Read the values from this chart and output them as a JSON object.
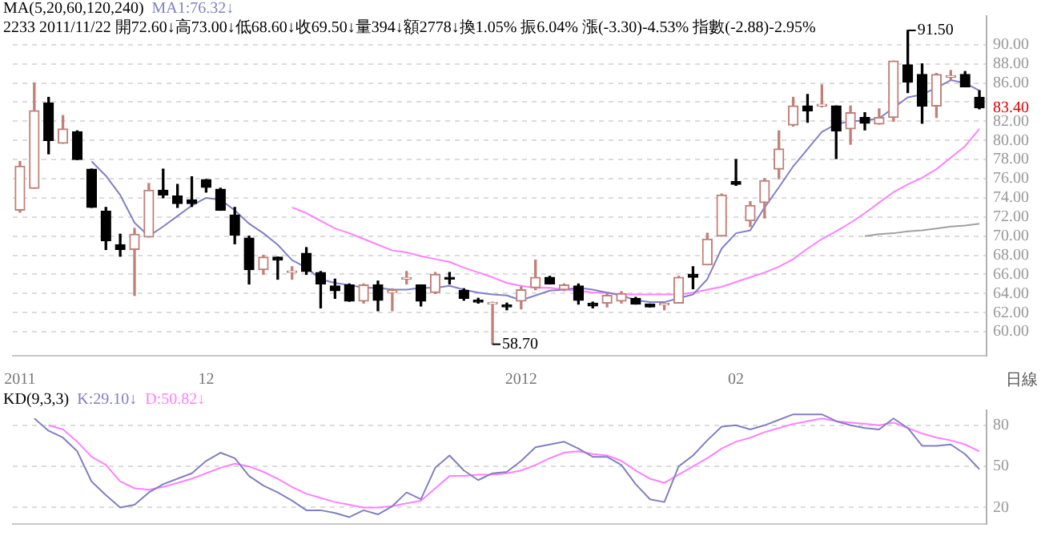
{
  "chart_data": [
    {
      "type": "candlestick",
      "title": "MA(5,20,60,120,240)",
      "subtitle": "2233 2011/11/22 開72.60↓高73.00↓低68.60↓收69.50↓量394↓額2778↓換1.05% 振6.04% 漲(-3.30)-4.53% 指數(-2.88)-2.95%",
      "categories": [
        "2011",
        null,
        null,
        null,
        null,
        null,
        null,
        null,
        null,
        null,
        null,
        null,
        null,
        "12",
        null,
        null,
        null,
        null,
        null,
        null,
        null,
        null,
        null,
        null,
        null,
        null,
        null,
        null,
        null,
        null,
        null,
        null,
        null,
        null,
        null,
        "2012",
        null,
        null,
        null,
        null,
        null,
        null,
        null,
        null,
        null,
        null,
        null,
        null,
        null,
        null,
        "02",
        null,
        null,
        null,
        null,
        null,
        null,
        null,
        null,
        null,
        null,
        null,
        null,
        null,
        null,
        null,
        null,
        null
      ],
      "ohlc": [
        [
          72.7,
          77.8,
          72.5,
          77.3
        ],
        [
          75.0,
          86.0,
          75.0,
          83.1
        ],
        [
          83.9,
          84.5,
          78.6,
          80.0
        ],
        [
          79.7,
          82.6,
          79.7,
          81.2
        ],
        [
          80.9,
          81.0,
          78.0,
          78.0
        ],
        [
          77.0,
          77.0,
          73.0,
          73.0
        ],
        [
          72.6,
          73.0,
          68.6,
          69.5
        ],
        [
          69.1,
          70.2,
          67.9,
          68.6
        ],
        [
          68.6,
          70.8,
          63.8,
          70.2
        ],
        [
          69.9,
          75.5,
          69.9,
          74.8
        ],
        [
          74.8,
          77.0,
          74.0,
          74.3
        ],
        [
          74.2,
          75.4,
          73.0,
          73.4
        ],
        [
          73.8,
          76.2,
          73.1,
          73.4
        ],
        [
          75.9,
          75.9,
          74.6,
          75.1
        ],
        [
          74.9,
          75.0,
          72.7,
          72.7
        ],
        [
          72.2,
          73.0,
          69.2,
          70.1
        ],
        [
          69.8,
          70.0,
          65.0,
          66.5
        ],
        [
          66.5,
          68.0,
          66.0,
          67.8
        ],
        [
          67.8,
          67.8,
          65.5,
          67.5
        ],
        [
          66.2,
          66.8,
          65.5,
          66.2
        ],
        [
          68.2,
          68.8,
          66.0,
          66.3
        ],
        [
          66.2,
          66.3,
          62.5,
          65.0
        ],
        [
          64.8,
          65.5,
          63.5,
          64.3
        ],
        [
          64.9,
          65.0,
          63.2,
          63.2
        ],
        [
          63.2,
          65.0,
          63.0,
          64.9
        ],
        [
          64.9,
          65.3,
          62.2,
          63.3
        ],
        [
          64.1,
          64.5,
          62.2,
          64.3
        ],
        [
          65.5,
          66.3,
          65.0,
          65.5
        ],
        [
          64.9,
          64.9,
          62.7,
          63.2
        ],
        [
          64.1,
          66.2,
          64.0,
          66.0
        ],
        [
          65.7,
          66.2,
          65.0,
          65.5
        ],
        [
          64.3,
          64.5,
          63.3,
          63.5
        ],
        [
          63.3,
          63.5,
          63.0,
          63.1
        ],
        [
          62.9,
          63.1,
          58.7,
          62.9
        ],
        [
          62.8,
          63.0,
          62.3,
          62.6
        ],
        [
          63.2,
          64.7,
          62.4,
          64.4
        ],
        [
          64.6,
          67.5,
          64.4,
          65.7
        ],
        [
          65.7,
          65.8,
          65.0,
          65.0
        ],
        [
          64.4,
          65.0,
          64.3,
          64.9
        ],
        [
          64.8,
          65.0,
          62.9,
          63.3
        ],
        [
          63.0,
          63.1,
          62.5,
          62.7
        ],
        [
          63.0,
          64.0,
          62.6,
          63.8
        ],
        [
          63.2,
          64.2,
          63.0,
          64.0
        ],
        [
          63.5,
          63.6,
          62.9,
          62.9
        ],
        [
          62.9,
          62.9,
          62.6,
          62.6
        ],
        [
          62.8,
          63.0,
          62.3,
          62.9
        ],
        [
          63.0,
          65.8,
          63.0,
          65.7
        ],
        [
          66.0,
          66.8,
          64.5,
          65.7
        ],
        [
          67.0,
          70.3,
          67.0,
          69.7
        ],
        [
          70.0,
          74.4,
          70.0,
          74.3
        ],
        [
          75.7,
          78.0,
          75.3,
          75.4
        ],
        [
          71.6,
          73.6,
          71.0,
          73.2
        ],
        [
          73.5,
          76.0,
          71.9,
          75.8
        ],
        [
          77.0,
          81.0,
          76.0,
          79.1
        ],
        [
          81.6,
          84.5,
          81.5,
          83.6
        ],
        [
          83.6,
          84.8,
          81.9,
          83.1
        ],
        [
          83.6,
          85.8,
          83.5,
          83.7
        ],
        [
          83.6,
          83.6,
          78.1,
          81.0
        ],
        [
          81.2,
          83.6,
          79.6,
          82.9
        ],
        [
          82.4,
          82.9,
          81.1,
          81.8
        ],
        [
          81.7,
          83.3,
          81.7,
          82.4
        ],
        [
          82.4,
          88.3,
          82.0,
          88.3
        ],
        [
          87.9,
          91.5,
          85.0,
          86.1
        ],
        [
          86.9,
          88.0,
          81.8,
          83.6
        ],
        [
          83.6,
          87.0,
          82.4,
          86.9
        ],
        [
          86.6,
          87.3,
          86.3,
          86.7
        ],
        [
          86.9,
          87.2,
          85.6,
          85.6
        ],
        [
          84.5,
          85.2,
          83.3,
          83.4
        ]
      ],
      "colors": [
        "#c08078",
        "#c08078",
        "#000000",
        "#c08078",
        "#000000",
        "#000000",
        "#000000",
        "#000000",
        "#c08078",
        "#c08078",
        "#000000",
        "#000000",
        "#000000",
        "#000000",
        "#000000",
        "#000000",
        "#000000",
        "#c08078",
        "#000000",
        "#c08078",
        "#000000",
        "#000000",
        "#000000",
        "#000000",
        "#c08078",
        "#000000",
        "#c08078",
        "#c08078",
        "#000000",
        "#c08078",
        "#000000",
        "#000000",
        "#000000",
        "#c08078",
        "#000000",
        "#c08078",
        "#c08078",
        "#000000",
        "#c08078",
        "#000000",
        "#000000",
        "#c08078",
        "#c08078",
        "#000000",
        "#000000",
        "#c08078",
        "#c08078",
        "#000000",
        "#c08078",
        "#c08078",
        "#000000",
        "#c08078",
        "#c08078",
        "#c08078",
        "#c08078",
        "#000000",
        "#c08078",
        "#000000",
        "#c08078",
        "#000000",
        "#c08078",
        "#c08078",
        "#000000",
        "#000000",
        "#c08078",
        "#c08078",
        "#000000",
        "#000000"
      ],
      "series": [
        {
          "name": "MA1:76.32↓",
          "type": "line",
          "color": "#8080c8",
          "values": [
            null,
            null,
            null,
            null,
            null,
            77.8,
            76.3,
            74.3,
            71.4,
            70.0,
            71.0,
            72.1,
            73.2,
            74.0,
            73.8,
            72.7,
            71.3,
            70.3,
            69.1,
            67.5,
            66.7,
            65.5,
            65.1,
            64.9,
            64.6,
            64.6,
            64.4,
            64.4,
            64.6,
            64.6,
            64.8,
            64.4,
            64.1,
            63.9,
            63.8,
            63.3,
            63.8,
            64.3,
            64.4,
            64.6,
            64.4,
            64.1,
            63.8,
            63.3,
            63.1,
            63.1,
            63.5,
            63.9,
            65.5,
            68.7,
            70.3,
            70.6,
            73.0,
            75.1,
            77.3,
            79.1,
            80.9,
            81.7,
            82.0,
            82.1,
            82.3,
            83.4,
            84.5,
            84.8,
            85.5,
            86.3,
            86.0,
            85.2
          ]
        },
        {
          "type": "line",
          "color": "#ff80ff",
          "values": [
            null,
            null,
            null,
            null,
            null,
            null,
            null,
            null,
            null,
            null,
            null,
            null,
            null,
            null,
            null,
            null,
            null,
            null,
            null,
            73.0,
            72.4,
            71.6,
            70.8,
            70.3,
            69.7,
            69.1,
            68.5,
            68.3,
            67.9,
            67.6,
            67.3,
            66.7,
            66.2,
            65.7,
            65.1,
            64.8,
            64.6,
            64.6,
            64.4,
            64.3,
            64.1,
            64.1,
            63.9,
            63.9,
            63.9,
            63.9,
            63.9,
            64.1,
            64.4,
            64.7,
            65.2,
            65.7,
            66.2,
            66.8,
            67.6,
            68.7,
            69.7,
            70.5,
            71.4,
            72.4,
            73.5,
            74.6,
            75.4,
            76.1,
            77.0,
            78.2,
            79.4,
            81.2
          ]
        },
        {
          "type": "line",
          "color": "#a0a0a0",
          "values": [
            null,
            null,
            null,
            null,
            null,
            null,
            null,
            null,
            null,
            null,
            null,
            null,
            null,
            null,
            null,
            null,
            null,
            null,
            null,
            null,
            null,
            null,
            null,
            null,
            null,
            null,
            null,
            null,
            null,
            null,
            null,
            null,
            null,
            null,
            null,
            null,
            null,
            null,
            null,
            null,
            null,
            null,
            null,
            null,
            null,
            null,
            null,
            null,
            null,
            null,
            null,
            null,
            null,
            null,
            null,
            null,
            null,
            null,
            null,
            70.0,
            70.2,
            70.3,
            70.5,
            70.6,
            70.8,
            71.0,
            71.1,
            71.3
          ]
        }
      ],
      "ylim": [
        57.5,
        93
      ],
      "yticks": [
        {
          "value": 60,
          "label": "60.00"
        },
        {
          "value": 62,
          "label": "62.00"
        },
        {
          "value": 64,
          "label": "64.00"
        },
        {
          "value": 66,
          "label": "66.00"
        },
        {
          "value": 68,
          "label": "68.00"
        },
        {
          "value": 70,
          "label": "70.00"
        },
        {
          "value": 72,
          "label": "72.00"
        },
        {
          "value": 74,
          "label": "74.00"
        },
        {
          "value": 76,
          "label": "76.00"
        },
        {
          "value": 78,
          "label": "78.00"
        },
        {
          "value": 80,
          "label": "80.00"
        },
        {
          "value": 82,
          "label": "82.00"
        },
        {
          "value": 84,
          "label": null
        },
        {
          "value": 86,
          "label": "86.00"
        },
        {
          "value": 88,
          "label": "88.00"
        },
        {
          "value": 90,
          "label": "90.00"
        }
      ],
      "annotations": [
        "91.50",
        "58.70",
        "83.40",
        "日線"
      ],
      "grid": "y",
      "legend": "top left"
    },
    {
      "type": "line",
      "title": "KD(9,3,3)",
      "categories": [
        null,
        null,
        null,
        null,
        null,
        null,
        null,
        null,
        null,
        null,
        null,
        null,
        null,
        null,
        null,
        null,
        null,
        null,
        null,
        null,
        null,
        null,
        null,
        null,
        null,
        null,
        null,
        null,
        null,
        null,
        null,
        null,
        null,
        null,
        null,
        null,
        null,
        null,
        null,
        null,
        null,
        null,
        null,
        null,
        null,
        null,
        null,
        null,
        null,
        null,
        null,
        null,
        null,
        null,
        null,
        null,
        null,
        null,
        null,
        null,
        null,
        null,
        null,
        null,
        null,
        null,
        null,
        null
      ],
      "series": [
        {
          "name": "K:29.10↓",
          "color": "#8080c0",
          "values": [
            null,
            85,
            76,
            71,
            61,
            39,
            29,
            20,
            22,
            31,
            37,
            41,
            45,
            54,
            60,
            56,
            43,
            36,
            31,
            25,
            18,
            18,
            16,
            13,
            18,
            15,
            21,
            31,
            26,
            49,
            58,
            47,
            40,
            45,
            46,
            54,
            64,
            66,
            68,
            63,
            57,
            57,
            51,
            37,
            26,
            24,
            50,
            58,
            69,
            79,
            80,
            77,
            80,
            84,
            88,
            88,
            88,
            83,
            80,
            78,
            77,
            85,
            78,
            65,
            65,
            66,
            59,
            48
          ]
        },
        {
          "name": "D:50.82↓",
          "color": "#ff80ff",
          "values": [
            null,
            null,
            80,
            77,
            68,
            57,
            51,
            39,
            34,
            33,
            35,
            38,
            41,
            45,
            49,
            52,
            50,
            46,
            41,
            35,
            30,
            27,
            24,
            22,
            20,
            20,
            21,
            23,
            25,
            34,
            43,
            43,
            44,
            44,
            45,
            47,
            51,
            56,
            60,
            61,
            59,
            58,
            54,
            47,
            41,
            38,
            44,
            50,
            56,
            63,
            68,
            71,
            75,
            78,
            81,
            83,
            85,
            83,
            82,
            81,
            80,
            82,
            78,
            74,
            71,
            69,
            66,
            61
          ]
        }
      ],
      "ylim": [
        8,
        91
      ],
      "yticks": [
        20,
        50,
        80
      ],
      "grid": "y",
      "legend": "top left",
      "tick_labels": "y"
    }
  ]
}
